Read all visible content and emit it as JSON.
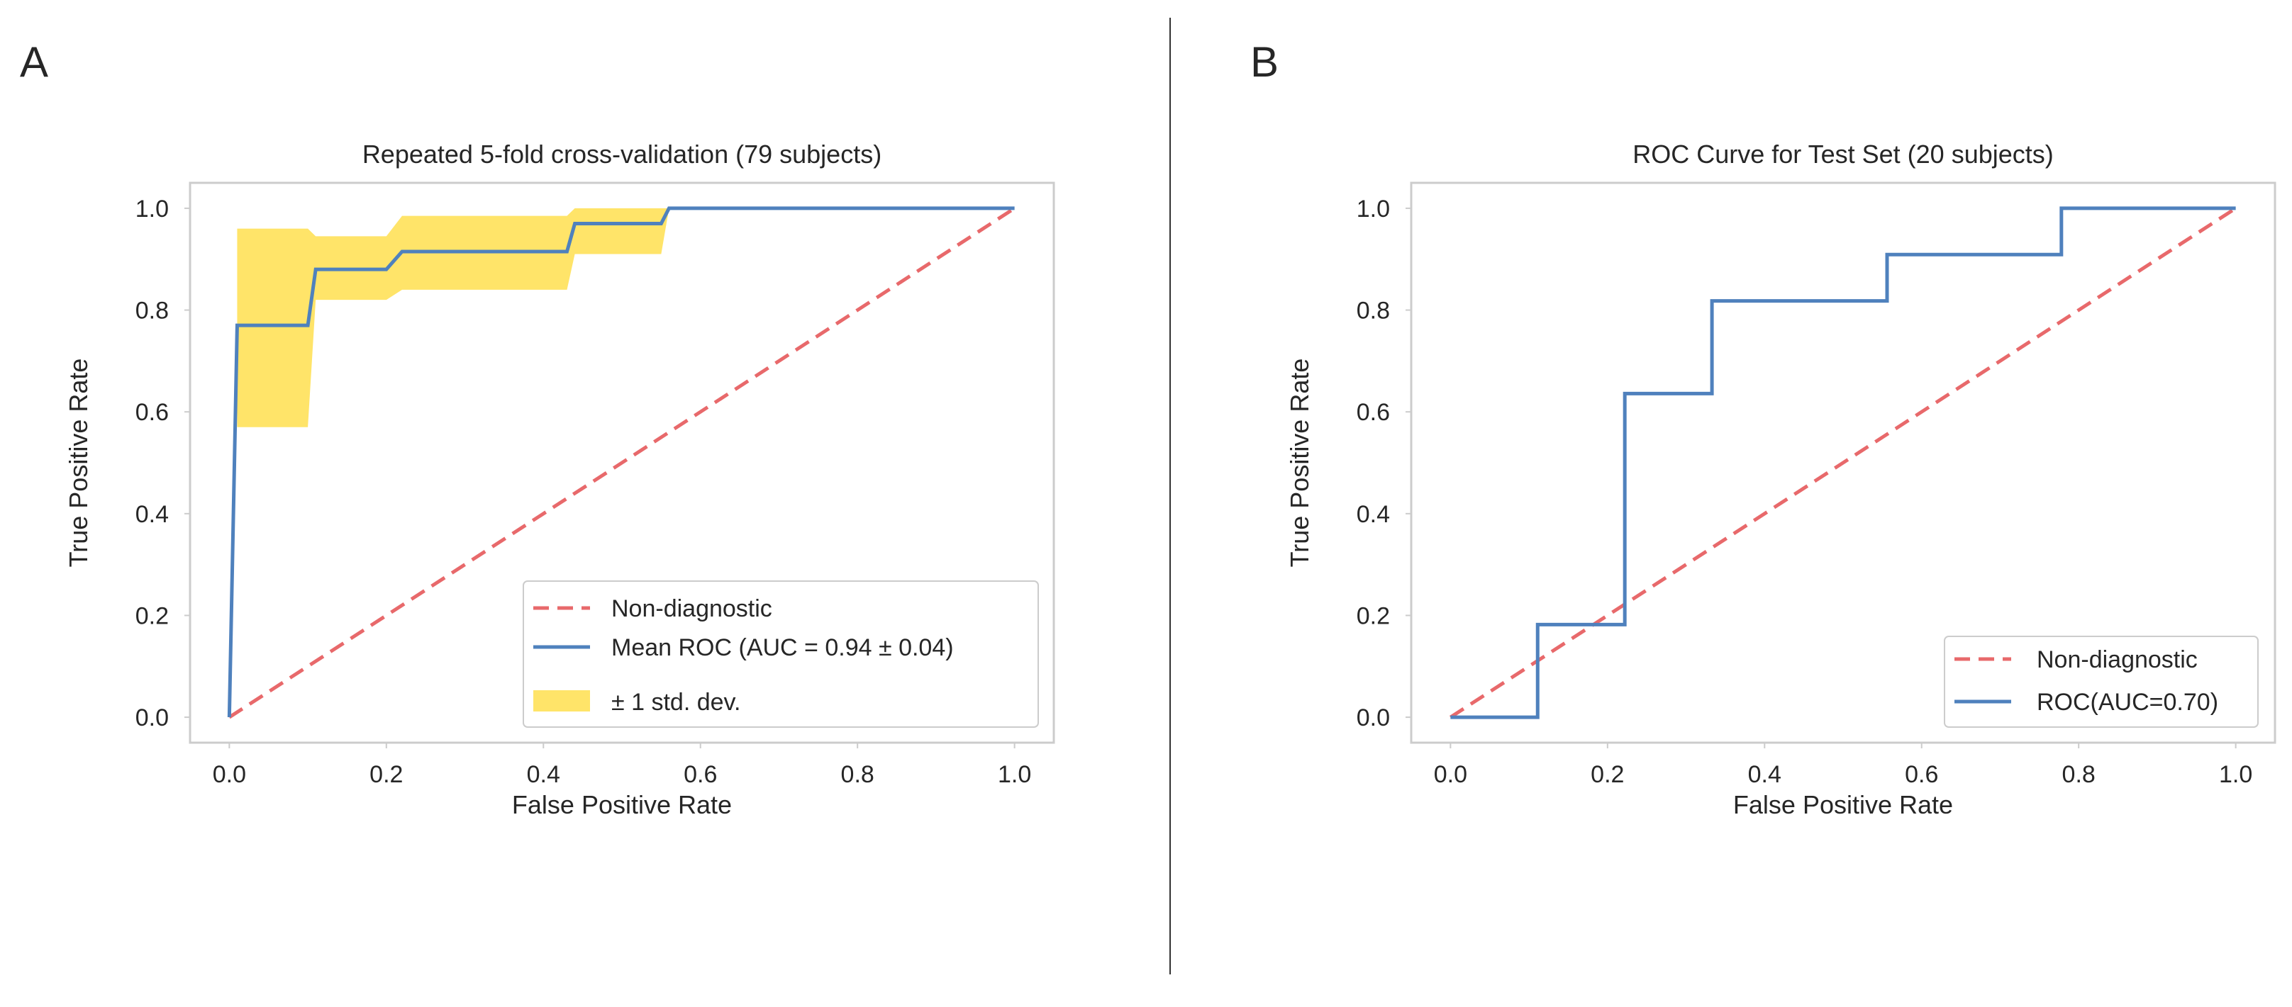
{
  "chart_data": [
    {
      "panel_label": "A",
      "type": "line",
      "title": "Repeated 5-fold cross-validation (79 subjects)",
      "xlabel": "False Positive Rate",
      "ylabel": "True Positive Rate",
      "xlim": [
        -0.05,
        1.05
      ],
      "ylim": [
        -0.05,
        1.05
      ],
      "xticks": [
        0.0,
        0.2,
        0.4,
        0.6,
        0.8,
        1.0
      ],
      "yticks": [
        0.0,
        0.2,
        0.4,
        0.6,
        0.8,
        1.0
      ],
      "tick_labels": [
        "0.0",
        "0.2",
        "0.4",
        "0.6",
        "0.8",
        "1.0"
      ],
      "grid": false,
      "legend_position": "lower-right",
      "series": [
        {
          "name": "Non-diagnostic",
          "style": "dashed",
          "color": "#e8696b",
          "x": [
            0,
            1
          ],
          "y": [
            0,
            1
          ]
        },
        {
          "name": "Mean ROC (AUC = 0.94 ± 0.04)",
          "style": "solid",
          "color": "#4f81bd",
          "x": [
            0,
            0.01,
            0.1,
            0.11,
            0.2,
            0.22,
            0.43,
            0.44,
            0.55,
            0.56,
            1.0
          ],
          "y": [
            0,
            0.77,
            0.77,
            0.88,
            0.88,
            0.915,
            0.915,
            0.97,
            0.97,
            1.0,
            1.0
          ]
        },
        {
          "name": "± 1 std. dev.",
          "style": "band",
          "color": "#ffd92f",
          "x": [
            0.01,
            0.1,
            0.11,
            0.2,
            0.22,
            0.43,
            0.44,
            0.55,
            0.56,
            1.0
          ],
          "upper": [
            0.96,
            0.96,
            0.945,
            0.945,
            0.985,
            0.985,
            1.0,
            1.0,
            1.0,
            1.0
          ],
          "lower": [
            0.57,
            0.57,
            0.82,
            0.82,
            0.84,
            0.84,
            0.91,
            0.91,
            1.0,
            1.0
          ]
        }
      ]
    },
    {
      "panel_label": "B",
      "type": "line",
      "title": "ROC Curve for Test Set (20 subjects)",
      "xlabel": "False Positive Rate",
      "ylabel": "True Positive Rate",
      "xlim": [
        -0.05,
        1.05
      ],
      "ylim": [
        -0.05,
        1.05
      ],
      "xticks": [
        0.0,
        0.2,
        0.4,
        0.6,
        0.8,
        1.0
      ],
      "yticks": [
        0.0,
        0.2,
        0.4,
        0.6,
        0.8,
        1.0
      ],
      "tick_labels": [
        "0.0",
        "0.2",
        "0.4",
        "0.6",
        "0.8",
        "1.0"
      ],
      "grid": false,
      "legend_position": "lower-right",
      "series": [
        {
          "name": "Non-diagnostic",
          "style": "dashed",
          "color": "#e8696b",
          "x": [
            0,
            1
          ],
          "y": [
            0,
            1
          ]
        },
        {
          "name": "ROC(AUC=0.70)",
          "style": "step",
          "color": "#4f81bd",
          "x": [
            0,
            0.111,
            0.111,
            0.222,
            0.222,
            0.333,
            0.333,
            0.556,
            0.556,
            0.778,
            0.778,
            1.0
          ],
          "y": [
            0,
            0,
            0.182,
            0.182,
            0.636,
            0.636,
            0.818,
            0.818,
            0.909,
            0.909,
            1.0,
            1.0
          ]
        }
      ]
    }
  ]
}
